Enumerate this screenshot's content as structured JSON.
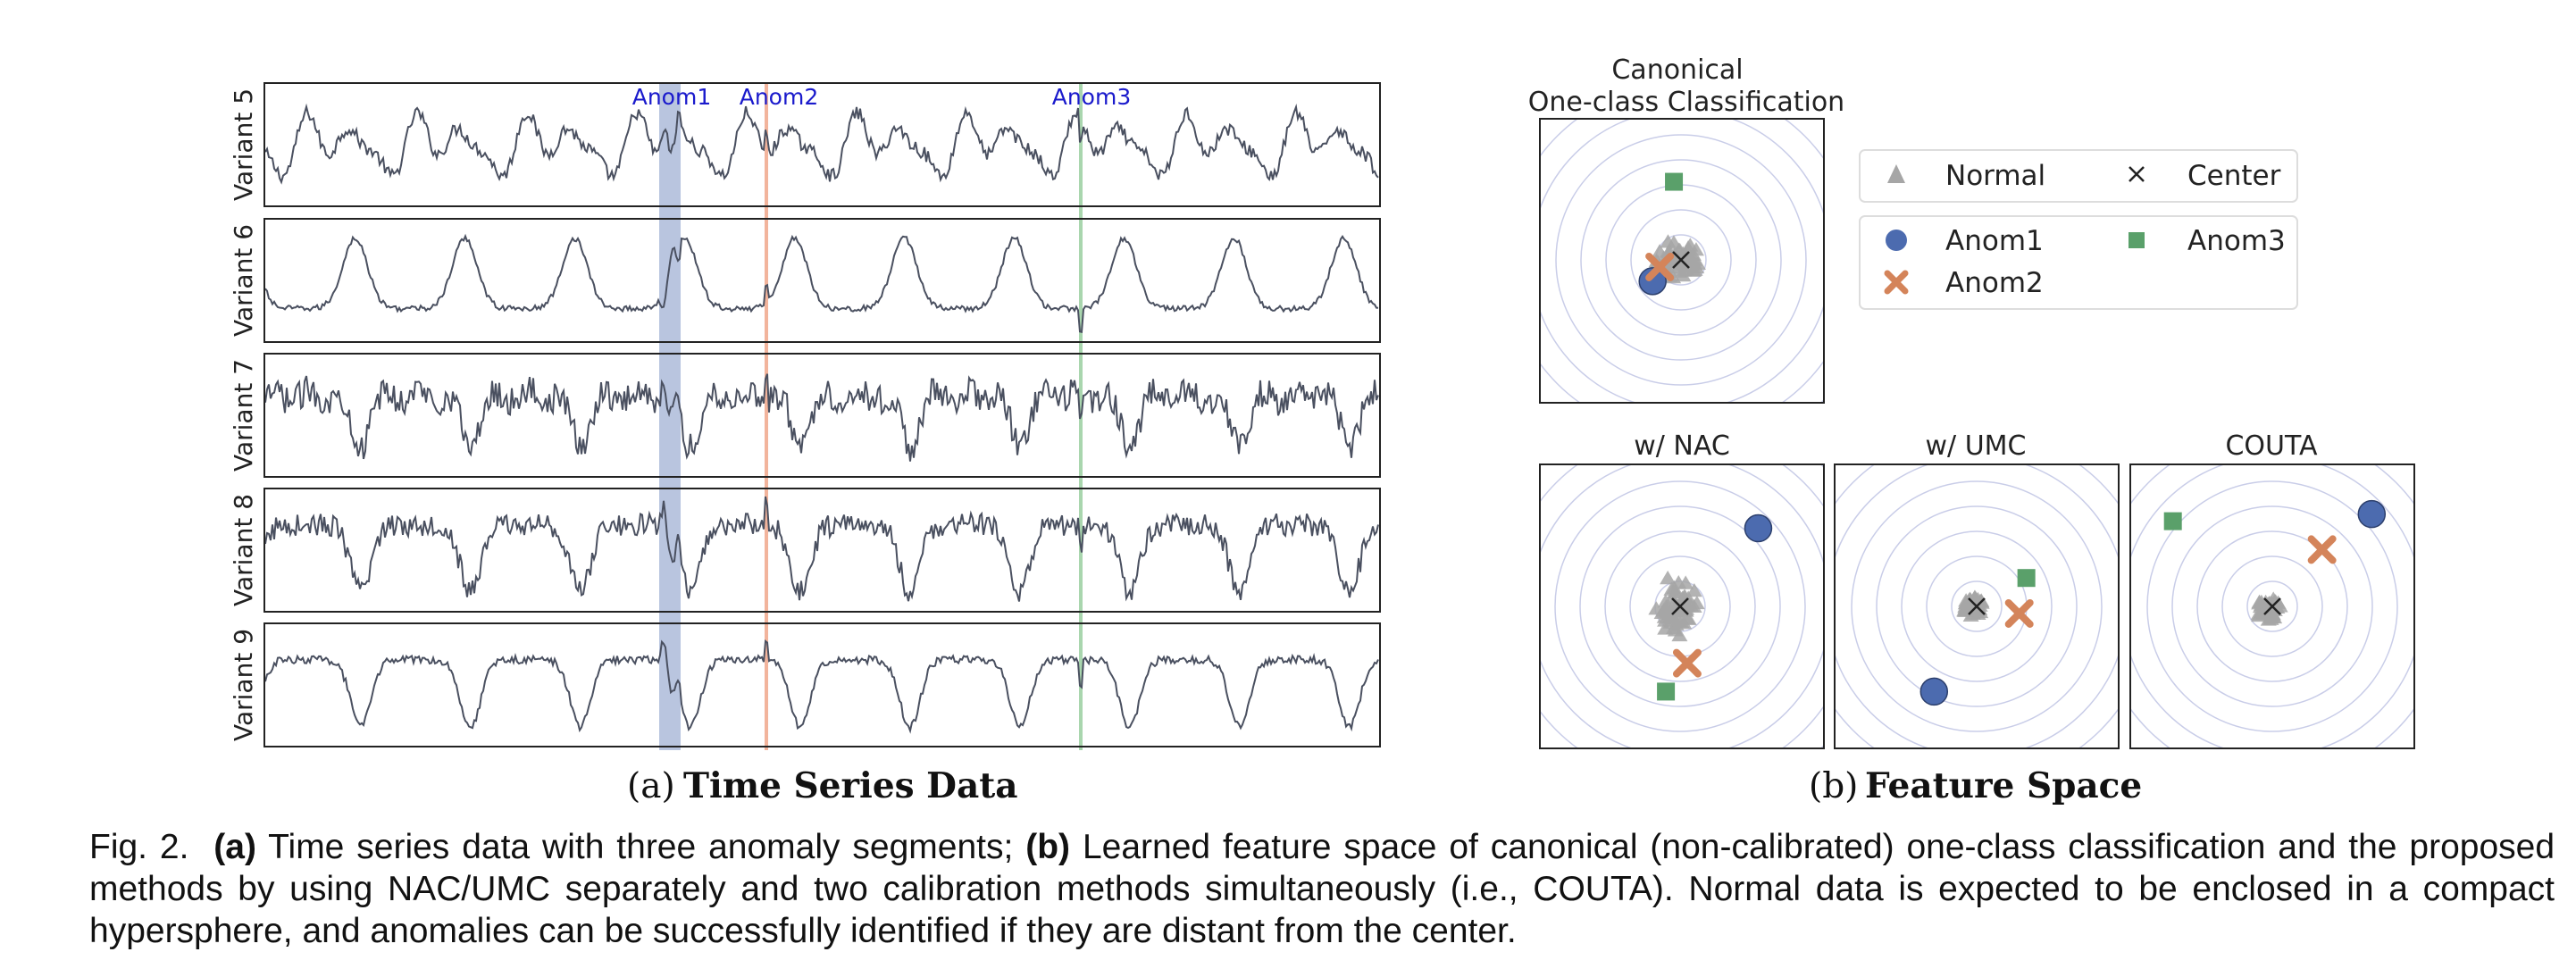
{
  "panel_a": {
    "caption_letter": "(a)",
    "caption_title": "Time Series Data",
    "anomaly_labels": [
      "Anom1",
      "Anom2",
      "Anom3"
    ],
    "variant_labels": [
      "Variant 5",
      "Variant 6",
      "Variant 7",
      "Variant 8",
      "Variant 9"
    ]
  },
  "panel_b": {
    "caption_letter": "(b)",
    "caption_title": "Feature Space",
    "canonical_title_line1": "Canonical",
    "canonical_title_line2": "One-class Classification",
    "subplot_titles": [
      "w/ NAC",
      "w/ UMC",
      "COUTA"
    ],
    "legend": {
      "normal": "Normal",
      "center": "Center",
      "anom1": "Anom1",
      "anom2": "Anom2",
      "anom3": "Anom3"
    }
  },
  "caption": {
    "fig_label": "Fig. 2.",
    "a_tag": "(a)",
    "a_text": "Time series data with three anomaly segments;",
    "b_tag": "(b)",
    "b_text": "Learned feature space of canonical (non-calibrated) one-class classification and the proposed methods by using NAC/UMC separately and two calibration methods simultaneously (i.e., COUTA). Normal data is expected to be enclosed in a compact hypersphere, and anomalies can be successfully identified if they are distant from the center."
  },
  "colors": {
    "series": "#4a5060",
    "anom1_band": "#b9c5df",
    "anom2_line": "#f2b49c",
    "anom3_line": "#a9d6ae",
    "anom_label": "#1a1acc",
    "normal_marker": "#a6a6a6",
    "anom1_marker": "#4c6baf",
    "anom2_marker": "#d4845a",
    "anom3_marker": "#5aa06a",
    "circle": "#c9cde8"
  },
  "chart_data": [
    {
      "type": "line",
      "title": "Time Series Data",
      "series": [
        {
          "name": "Variant 5"
        },
        {
          "name": "Variant 6"
        },
        {
          "name": "Variant 7"
        },
        {
          "name": "Variant 8"
        },
        {
          "name": "Variant 9"
        }
      ],
      "anomalies": [
        "Anom1",
        "Anom2",
        "Anom3"
      ]
    },
    {
      "type": "scatter",
      "title": "Canonical One-class Classification",
      "points": {
        "Anom1": [
          -0.2,
          -0.15
        ],
        "Anom2": [
          -0.15,
          -0.05
        ],
        "Anom3": [
          -0.05,
          0.55
        ]
      }
    },
    {
      "type": "scatter",
      "title": "w/ NAC",
      "points": {
        "Anom1": [
          0.55,
          0.55
        ],
        "Anom2": [
          0.05,
          -0.4
        ],
        "Anom3": [
          -0.1,
          -0.6
        ]
      }
    },
    {
      "type": "scatter",
      "title": "w/ UMC",
      "points": {
        "Anom1": [
          -0.3,
          -0.6
        ],
        "Anom2": [
          0.3,
          -0.05
        ],
        "Anom3": [
          0.35,
          0.2
        ]
      }
    },
    {
      "type": "scatter",
      "title": "COUTA",
      "points": {
        "Anom1": [
          0.7,
          0.65
        ],
        "Anom2": [
          0.35,
          0.4
        ],
        "Anom3": [
          -0.7,
          0.6
        ]
      }
    }
  ]
}
